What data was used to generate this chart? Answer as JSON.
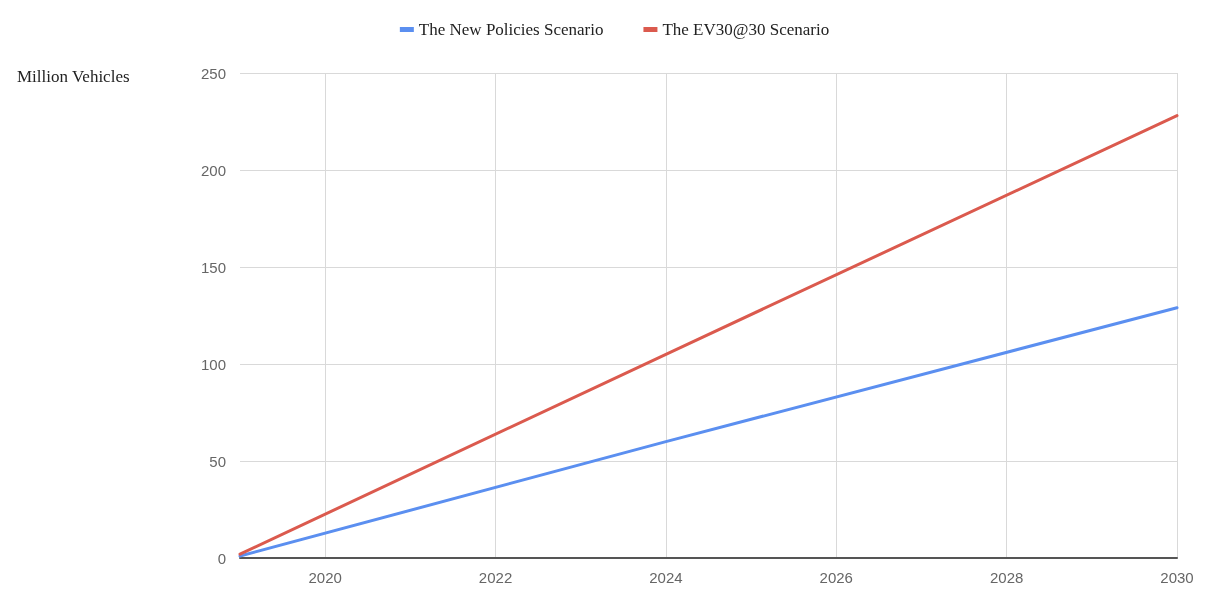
{
  "chart_data": {
    "type": "line",
    "ylabel": "Million Vehicles",
    "x": [
      2019,
      2024,
      2030
    ],
    "series": [
      {
        "name": "The New Policies Scenario",
        "color": "#5b8ff0",
        "values": [
          1,
          60,
          129
        ]
      },
      {
        "name": "The EV30@30 Scenario",
        "color": "#db5a4e",
        "values": [
          2,
          105,
          228
        ]
      }
    ],
    "xlim": [
      2019,
      2030
    ],
    "xticks": [
      2020,
      2022,
      2024,
      2026,
      2028,
      2030
    ],
    "ylim": [
      0,
      250
    ],
    "yticks": [
      0,
      50,
      100,
      150,
      200,
      250
    ],
    "grid": true,
    "legend": "top",
    "marker": "none",
    "line_style": "solid"
  }
}
